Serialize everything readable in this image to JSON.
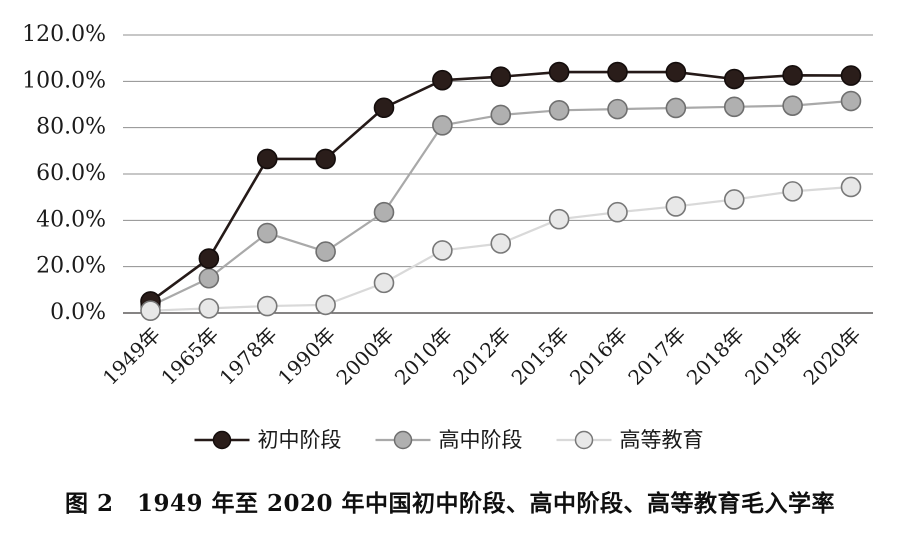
{
  "figure_label": "图 2",
  "caption": {
    "text": "图 2　1949 年至 2020 年中国初中阶段、高中阶段、高等教育毛入学率"
  },
  "colors": {
    "gridline": "#8f8f8f",
    "axis_line": "#5f5b5b",
    "background": "#ffffff",
    "text": "#1b1b1b"
  },
  "chart_data": {
    "type": "line",
    "title": "",
    "xlabel": "",
    "ylabel": "",
    "ylim": [
      0,
      120
    ],
    "y_tick_step": 20,
    "grid": "horizontal",
    "legend_position": "bottom",
    "y_ticks": [
      "0.0%",
      "20.0%",
      "40.0%",
      "60.0%",
      "80.0%",
      "100.0%",
      "120.0%"
    ],
    "y_tick_values": [
      0,
      20,
      40,
      60,
      80,
      100,
      120
    ],
    "categories": [
      "1949年",
      "1965年",
      "1978年",
      "1990年",
      "2000年",
      "2010年",
      "2012年",
      "2015年",
      "2016年",
      "2017年",
      "2018年",
      "2019年",
      "2020年"
    ],
    "series": [
      {
        "id": "junior-secondary",
        "name": "初中阶段",
        "values": [
          5.0,
          23.5,
          66.5,
          66.5,
          88.6,
          100.5,
          102.0,
          104.0,
          104.0,
          104.0,
          101.0,
          102.6,
          102.5
        ],
        "line_color": "#251a18",
        "marker_fill": "#2a1d1a",
        "marker_stroke": "#140d0c",
        "line_width": 2.6
      },
      {
        "id": "senior-secondary",
        "name": "高中阶段",
        "values": [
          3.0,
          15.0,
          34.5,
          26.5,
          43.5,
          81.0,
          85.5,
          87.5,
          88.0,
          88.5,
          89.0,
          89.5,
          91.5
        ],
        "line_color": "#a9a9a9",
        "marker_fill": "#b0b0b0",
        "marker_stroke": "#6f6f6f",
        "line_width": 2.2
      },
      {
        "id": "higher-education",
        "name": "高等教育",
        "values": [
          1.0,
          2.0,
          3.0,
          3.5,
          13.0,
          27.0,
          30.0,
          40.5,
          43.5,
          46.0,
          49.0,
          52.5,
          54.4
        ],
        "line_color": "#d9d9d9",
        "marker_fill": "#e8e8e8",
        "marker_stroke": "#787878",
        "line_width": 2.2
      }
    ]
  }
}
